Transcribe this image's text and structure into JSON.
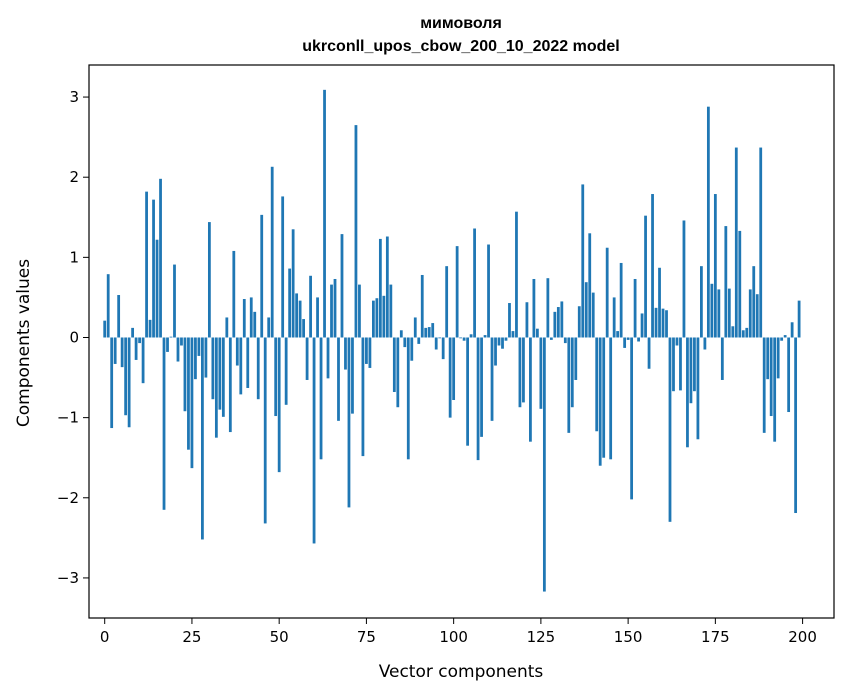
{
  "chart_data": {
    "type": "bar",
    "title": "мимоволя",
    "subtitle": "ukrconll_upos_cbow_200_10_2022 model",
    "xlabel": "Vector components",
    "ylabel": "Components values",
    "xlim": [
      -4.5,
      209
    ],
    "ylim": [
      -3.5,
      3.4
    ],
    "xticks": [
      0,
      25,
      50,
      75,
      100,
      125,
      150,
      175,
      200
    ],
    "yticks": [
      -3,
      -2,
      -1,
      0,
      1,
      2,
      3
    ],
    "xtick_labels": [
      "0",
      "25",
      "50",
      "75",
      "100",
      "125",
      "150",
      "175",
      "200"
    ],
    "ytick_labels": [
      "−3",
      "−2",
      "−1",
      "0",
      "1",
      "2",
      "3"
    ],
    "bar_color": "#1f77b4",
    "grid": false,
    "x": [
      0,
      1,
      2,
      3,
      4,
      5,
      6,
      7,
      8,
      9,
      10,
      11,
      12,
      13,
      14,
      15,
      16,
      17,
      18,
      19,
      20,
      21,
      22,
      23,
      24,
      25,
      26,
      27,
      28,
      29,
      30,
      31,
      32,
      33,
      34,
      35,
      36,
      37,
      38,
      39,
      40,
      41,
      42,
      43,
      44,
      45,
      46,
      47,
      48,
      49,
      50,
      51,
      52,
      53,
      54,
      55,
      56,
      57,
      58,
      59,
      60,
      61,
      62,
      63,
      64,
      65,
      66,
      67,
      68,
      69,
      70,
      71,
      72,
      73,
      74,
      75,
      76,
      77,
      78,
      79,
      80,
      81,
      82,
      83,
      84,
      85,
      86,
      87,
      88,
      89,
      90,
      91,
      92,
      93,
      94,
      95,
      96,
      97,
      98,
      99,
      100,
      101,
      102,
      103,
      104,
      105,
      106,
      107,
      108,
      109,
      110,
      111,
      112,
      113,
      114,
      115,
      116,
      117,
      118,
      119,
      120,
      121,
      122,
      123,
      124,
      125,
      126,
      127,
      128,
      129,
      130,
      131,
      132,
      133,
      134,
      135,
      136,
      137,
      138,
      139,
      140,
      141,
      142,
      143,
      144,
      145,
      146,
      147,
      148,
      149,
      150,
      151,
      152,
      153,
      154,
      155,
      156,
      157,
      158,
      159,
      160,
      161,
      162,
      163,
      164,
      165,
      166,
      167,
      168,
      169,
      170,
      171,
      172,
      173,
      174,
      175,
      176,
      177,
      178,
      179,
      180,
      181,
      182,
      183,
      184,
      185,
      186,
      187,
      188,
      189,
      190,
      191,
      192,
      193,
      194,
      195,
      196,
      197,
      198,
      199
    ],
    "values": [
      0.21,
      0.79,
      -1.13,
      -0.33,
      0.53,
      -0.37,
      -0.97,
      -1.12,
      0.12,
      -0.28,
      -0.07,
      -0.57,
      1.82,
      0.22,
      1.72,
      1.22,
      1.98,
      -2.15,
      -0.18,
      0.01,
      0.91,
      -0.3,
      -0.1,
      -0.92,
      -1.4,
      -1.63,
      -0.52,
      -0.23,
      -2.52,
      -0.5,
      1.44,
      -0.77,
      -1.25,
      -0.9,
      -0.99,
      0.25,
      -1.18,
      1.08,
      -0.35,
      -0.71,
      0.48,
      -0.63,
      0.5,
      0.32,
      -0.77,
      1.53,
      -2.32,
      0.25,
      2.13,
      -0.98,
      -1.68,
      1.76,
      -0.84,
      0.86,
      1.35,
      0.55,
      0.46,
      0.23,
      -0.53,
      0.77,
      -2.57,
      0.5,
      -1.52,
      3.09,
      -0.51,
      0.66,
      0.73,
      -1.04,
      1.29,
      -0.4,
      -2.12,
      -0.95,
      2.65,
      0.66,
      -1.48,
      -0.33,
      -0.38,
      0.46,
      0.49,
      1.23,
      0.52,
      1.26,
      0.66,
      -0.68,
      -0.87,
      0.09,
      -0.12,
      -1.52,
      -0.29,
      0.25,
      -0.08,
      0.78,
      0.12,
      0.13,
      0.18,
      -0.15,
      -0.01,
      -0.27,
      0.89,
      -1.0,
      -0.78,
      1.14,
      -0.01,
      -0.04,
      -1.35,
      0.04,
      1.36,
      -1.53,
      -1.24,
      0.03,
      1.16,
      -1.04,
      -0.35,
      -0.1,
      -0.14,
      -0.04,
      0.43,
      0.08,
      1.57,
      -0.87,
      -0.81,
      0.44,
      -1.3,
      0.73,
      0.11,
      -0.89,
      -3.17,
      0.74,
      -0.03,
      0.32,
      0.38,
      0.45,
      -0.07,
      -1.19,
      -0.87,
      -0.53,
      0.39,
      1.91,
      0.69,
      1.3,
      0.56,
      -1.17,
      -1.6,
      -1.5,
      1.12,
      -1.52,
      0.5,
      0.08,
      0.93,
      -0.13,
      -0.03,
      -2.02,
      0.73,
      -0.05,
      0.3,
      1.52,
      -0.39,
      1.79,
      0.37,
      0.87,
      0.36,
      0.34,
      -2.3,
      -0.67,
      -0.1,
      -0.66,
      1.46,
      -1.37,
      -0.82,
      -0.67,
      -1.27,
      0.89,
      -0.15,
      2.88,
      0.67,
      1.79,
      0.6,
      -0.53,
      1.39,
      0.61,
      0.14,
      2.37,
      1.33,
      0.09,
      0.12,
      0.6,
      0.89,
      0.54,
      2.37,
      -1.19,
      -0.52,
      -0.98,
      -1.3,
      -0.51,
      -0.04,
      0.03,
      -0.93,
      0.19,
      -2.19,
      0.46
    ]
  }
}
